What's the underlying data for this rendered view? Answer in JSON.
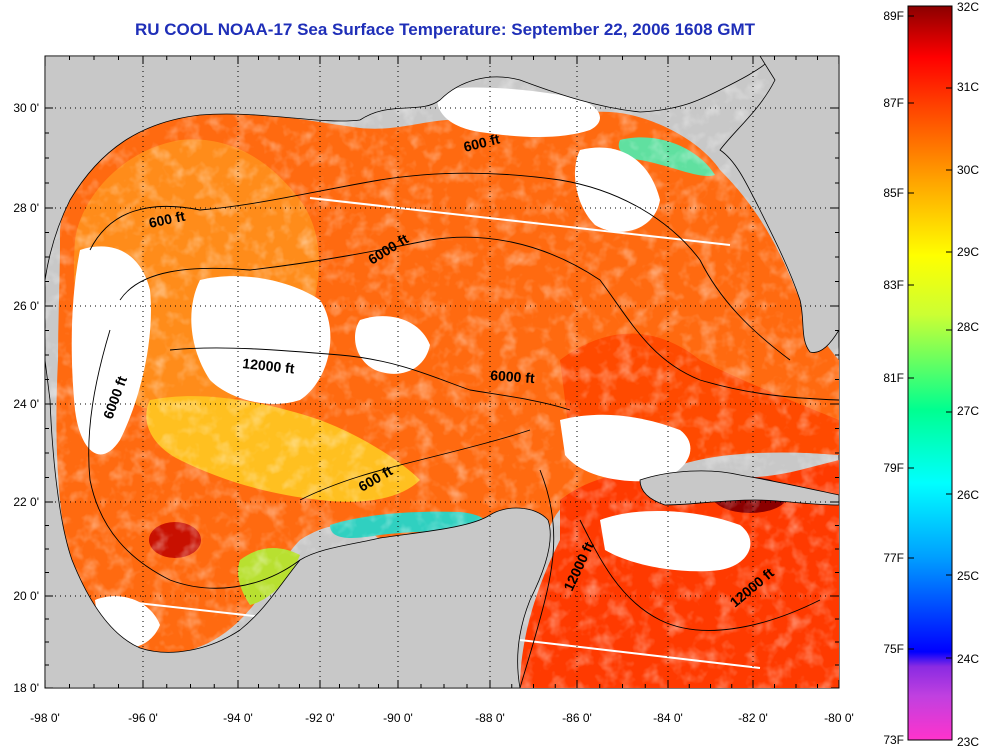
{
  "title": "RU COOL  NOAA-17  Sea Surface Temperature:  September 22, 2006 1608 GMT",
  "map": {
    "lon_labels": [
      "-98 0'",
      "-96 0'",
      "-94 0'",
      "-92 0'",
      "-90 0'",
      "-88 0'",
      "-86 0'",
      "-84 0'",
      "-82 0'",
      "-80 0'"
    ],
    "lat_labels": [
      "30 0'",
      "28 0'",
      "26 0'",
      "24 0'",
      "22 0'",
      "20 0'",
      "18 0'"
    ],
    "contour_labels": [
      "600 ft",
      "600 ft",
      "6000 ft",
      "12000 ft",
      "6000 ft",
      "6000 ft",
      "600 ft",
      "12000 ft",
      "12000 ft"
    ],
    "land_color": "#c8c8c8",
    "cloud_color": "#ffffff"
  },
  "colorbar": {
    "fahrenheit_labels": [
      "89F",
      "87F",
      "85F",
      "83F",
      "81F",
      "79F",
      "77F",
      "75F",
      "73F"
    ],
    "celsius_labels": [
      "32C",
      "31C",
      "30C",
      "29C",
      "28C",
      "27C",
      "26C",
      "25C",
      "24C",
      "23C"
    ],
    "colors": [
      "#ff33cc",
      "#8a2be2",
      "#0000ff",
      "#00a0ff",
      "#00ffff",
      "#00ff90",
      "#ccff33",
      "#ffff00",
      "#ffa500",
      "#ff4500",
      "#ff0000",
      "#8b0000"
    ]
  }
}
